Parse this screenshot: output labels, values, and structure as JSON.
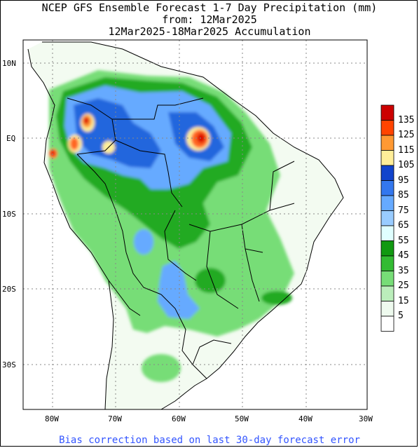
{
  "title": {
    "line1": "NCEP GFS Ensemble Forecast 1-7 Day Precipitation (mm)",
    "line2": "from: 12Mar2025",
    "line3": "12Mar2025-18Mar2025 Accumulation"
  },
  "footer": "Bias correction based on last 30-day forecast error",
  "axes": {
    "lon_labels": [
      "80W",
      "70W",
      "60W",
      "50W",
      "40W",
      "30W"
    ],
    "lat_labels": [
      "10N",
      "EQ",
      "10S",
      "20S",
      "30S"
    ]
  },
  "colorbar": {
    "labels": [
      "135",
      "125",
      "115",
      "105",
      "95",
      "85",
      "75",
      "65",
      "55",
      "45",
      "35",
      "25",
      "15",
      "5"
    ],
    "colors": [
      "#cc0000",
      "#ff4400",
      "#ff9933",
      "#ffee99",
      "#1144cc",
      "#3377ee",
      "#66aaff",
      "#99ccff",
      "#e0ffff",
      "#119911",
      "#33bb33",
      "#77dd77",
      "#bbeebb",
      "#eefaee",
      "#ffffff"
    ]
  },
  "map": {
    "region": "South America",
    "land_fill": "#f3fbf1",
    "ocean_fill": "#ffffff",
    "grid": true
  }
}
